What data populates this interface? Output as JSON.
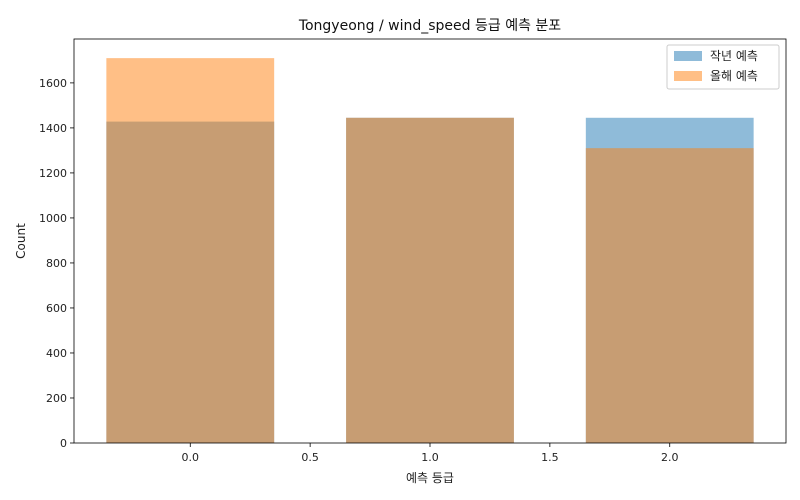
{
  "chart_data": {
    "type": "bar",
    "title": "Tongyeong / wind_speed 등급 예측 분포",
    "xlabel": "예측 등급",
    "ylabel": "Count",
    "x": [
      0.0,
      1.0,
      2.0
    ],
    "bar_width": 0.7,
    "xlim": [
      -0.485,
      2.485
    ],
    "ylim": [
      0,
      1795
    ],
    "xticks": [
      0.0,
      0.5,
      1.0,
      1.5,
      2.0
    ],
    "xtick_labels": [
      "0.0",
      "0.5",
      "1.0",
      "1.5",
      "2.0"
    ],
    "yticks": [
      0,
      200,
      400,
      600,
      800,
      1000,
      1200,
      1400,
      1600
    ],
    "ytick_labels": [
      "0",
      "200",
      "400",
      "600",
      "800",
      "1000",
      "1200",
      "1400",
      "1600"
    ],
    "grid": false,
    "legend_position": "top-right",
    "series": [
      {
        "name": "작년 예측",
        "values": [
          1428,
          1445,
          1445
        ],
        "color": "#1f77b4",
        "opacity": 0.5
      },
      {
        "name": "올해 예측",
        "values": [
          1710,
          1445,
          1310
        ],
        "color": "#ff7f0e",
        "opacity": 0.5
      }
    ]
  }
}
